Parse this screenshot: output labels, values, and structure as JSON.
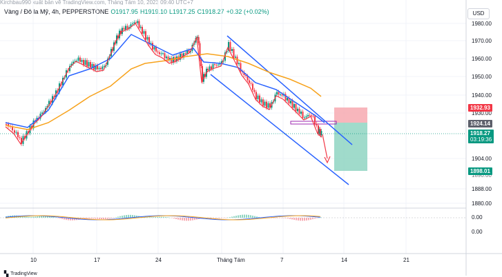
{
  "header": {
    "watermark": "Kirchbau990 xuất bản vẽ TradingView.com, Tháng Tám 10, 2023 09:40 UTC+7"
  },
  "legend": {
    "symbol": "Vàng / Đô la Mỹ, 4h, PEPPERSTONE",
    "open": "O1917.95",
    "high": "H1919.10",
    "low": "L1917.25",
    "close": "C1918.27",
    "change": "+0.32 (+0.02%)"
  },
  "currency_button": "USD",
  "price_axis": [
    "1980.00",
    "1970.00",
    "1960.00",
    "1950.00",
    "1940.00",
    "1930.00",
    "1904.00",
    "1890.00",
    "1888.00",
    "1880.00"
  ],
  "price_tags": {
    "stop_loss": "1932.93",
    "entry": "1924.14",
    "current": "1918.27",
    "countdown": "03:19:36",
    "take_profit": "1898.01"
  },
  "oscillator_axis": [
    "0.00",
    "0.00"
  ],
  "time_axis": [
    "10",
    "17",
    "24",
    "Tháng Tám",
    "7",
    "14",
    "21"
  ],
  "footer": {
    "brand": "TradingView"
  },
  "colors": {
    "up": "#089981",
    "down": "#f23645",
    "ma_fast": "#f23645",
    "ma_mid": "#2962ff",
    "ma_slow": "#f7a21b",
    "channel": "#2962ff",
    "stop_zone": "#f7a9b0",
    "target_zone": "#8fd5c2"
  }
}
